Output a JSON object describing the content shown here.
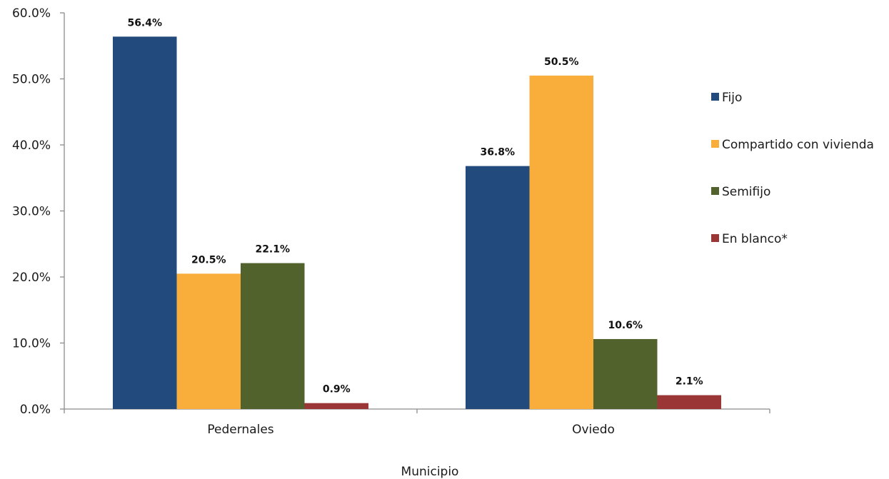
{
  "chart_data": {
    "type": "bar",
    "categories": [
      "Pedernales",
      "Oviedo"
    ],
    "series": [
      {
        "name": "Fijo",
        "color": "#234a7c",
        "values": [
          56.4,
          36.8
        ],
        "labels": [
          "56.4%",
          "36.8%"
        ]
      },
      {
        "name": "Compartido con vivienda",
        "color": "#f9ae3b",
        "values": [
          20.5,
          50.5
        ],
        "labels": [
          "20.5%",
          "50.5%"
        ]
      },
      {
        "name": "Semifijo",
        "color": "#52622d",
        "values": [
          22.1,
          10.6
        ],
        "labels": [
          "22.1%",
          "10.6%"
        ]
      },
      {
        "name": "En blanco*",
        "color": "#9a3736",
        "values": [
          0.9,
          2.1
        ],
        "labels": [
          "0.9%",
          "2.1%"
        ]
      }
    ],
    "xlabel": "Municipio",
    "ylabel": "",
    "ylim": [
      0,
      60
    ],
    "yticks": [
      0,
      10,
      20,
      30,
      40,
      50,
      60
    ],
    "ytick_labels": [
      "0.0%",
      "10.0%",
      "20.0%",
      "30.0%",
      "40.0%",
      "50.0%",
      "60.0%"
    ],
    "grid": false,
    "legend": "right"
  }
}
